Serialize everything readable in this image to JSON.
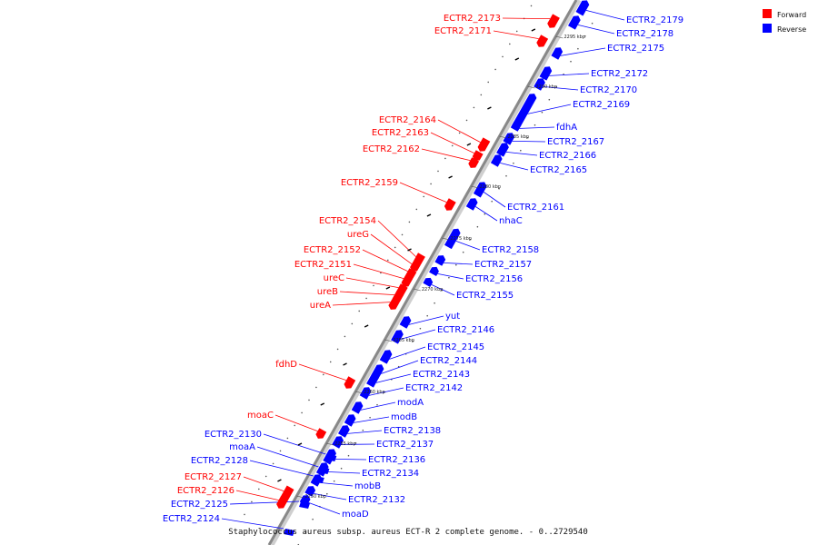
{
  "caption": "Staphylococcus aureus subsp. aureus ECT-R 2 complete genome. - 0..2729540",
  "legend": [
    {
      "label": "Forward",
      "color": "#ff0000"
    },
    {
      "label": "Reverse",
      "color": "#0000ff"
    }
  ],
  "colors": {
    "forward": "#ff0000",
    "reverse": "#0000ff",
    "backbone": "#888888"
  },
  "ticks": [
    "2295 kbp",
    "2290 kbp",
    "2285 kbp",
    "2280 kbp",
    "2275 kbp",
    "2270 kbp",
    "2265 kbp",
    "2260 kbp",
    "2255 kbp",
    "2250 kbp"
  ],
  "forward_genes": [
    "ECTR2_2173",
    "ECTR2_2171",
    "ECTR2_2164",
    "ECTR2_2163",
    "ECTR2_2162",
    "ECTR2_2159",
    "ECTR2_2154",
    "ureG",
    "ECTR2_2152",
    "ECTR2_2151",
    "ureC",
    "ureB",
    "ureA",
    "fdhD",
    "moaC",
    "ECTR2_2127",
    "ECTR2_2126"
  ],
  "reverse_genes": [
    "ECTR2_2179",
    "ECTR2_2178",
    "ECTR2_2175",
    "ECTR2_2172",
    "ECTR2_2170",
    "ECTR2_2169",
    "fdhA",
    "ECTR2_2167",
    "ECTR2_2166",
    "ECTR2_2165",
    "ECTR2_2161",
    "nhaC",
    "ECTR2_2158",
    "ECTR2_2157",
    "ECTR2_2156",
    "ECTR2_2155",
    "yut",
    "ECTR2_2146",
    "ECTR2_2145",
    "ECTR2_2144",
    "ECTR2_2143",
    "ECTR2_2142",
    "modA",
    "modB",
    "ECTR2_2138",
    "ECTR2_2137",
    "ECTR2_2136",
    "ECTR2_2134",
    "mobB",
    "ECTR2_2132",
    "moaD",
    "ECTR2_2130",
    "moaA",
    "ECTR2_2128",
    "ECTR2_2125",
    "ECTR2_2124"
  ]
}
